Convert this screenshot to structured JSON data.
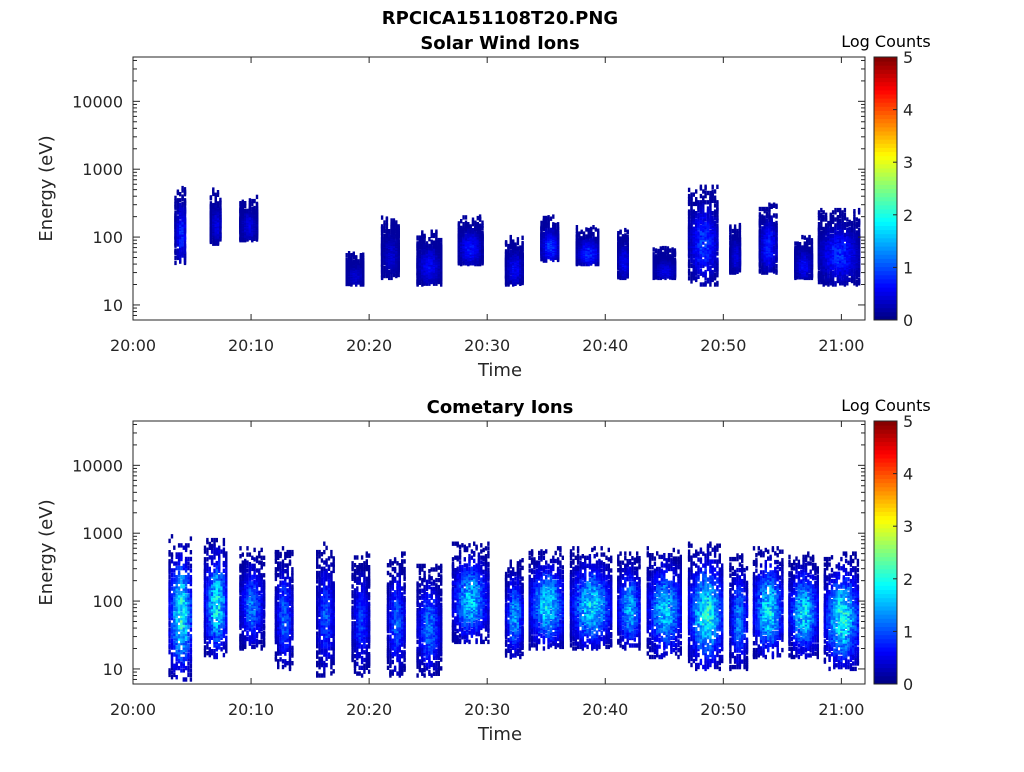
{
  "figure_title": "RPCICA151108T20.PNG",
  "chart_data": [
    {
      "type": "heatmap",
      "title": "Solar Wind Ions",
      "xlabel": "Time",
      "ylabel": "Energy (eV)",
      "y_scale": "log",
      "ylim": [
        6,
        45000
      ],
      "xlim": [
        "20:00",
        "21:02"
      ],
      "x_ticks": [
        "20:00",
        "20:10",
        "20:20",
        "20:30",
        "20:40",
        "20:50",
        "21:00"
      ],
      "y_ticks": [
        "10",
        "100",
        "1000",
        "10000"
      ],
      "colorbar": {
        "label": "Log Counts",
        "ticks": [
          "0",
          "1",
          "2",
          "3",
          "4",
          "5"
        ],
        "range": [
          0,
          5
        ],
        "colormap": "jet"
      },
      "activity_bursts": [
        {
          "start": "20:03.5",
          "end": "20:04.5",
          "emin": 40,
          "emax": 550,
          "level": 0.8
        },
        {
          "start": "20:06.5",
          "end": "20:07.5",
          "emin": 80,
          "emax": 500,
          "level": 0.5
        },
        {
          "start": "20:09",
          "end": "20:10.5",
          "emin": 90,
          "emax": 400,
          "level": 0.5
        },
        {
          "start": "20:18",
          "end": "20:19.5",
          "emin": 20,
          "emax": 60,
          "level": 0.4
        },
        {
          "start": "20:21",
          "end": "20:22.5",
          "emin": 25,
          "emax": 200,
          "level": 0.4
        },
        {
          "start": "20:24",
          "end": "20:26",
          "emin": 20,
          "emax": 120,
          "level": 0.6
        },
        {
          "start": "20:27.5",
          "end": "20:29.5",
          "emin": 40,
          "emax": 200,
          "level": 0.7
        },
        {
          "start": "20:31.5",
          "end": "20:33",
          "emin": 20,
          "emax": 100,
          "level": 0.6
        },
        {
          "start": "20:34.5",
          "end": "20:36",
          "emin": 45,
          "emax": 200,
          "level": 0.9
        },
        {
          "start": "20:37.5",
          "end": "20:39.5",
          "emin": 40,
          "emax": 140,
          "level": 0.8
        },
        {
          "start": "20:41",
          "end": "20:42",
          "emin": 25,
          "emax": 130,
          "level": 0.6
        },
        {
          "start": "20:44",
          "end": "20:46",
          "emin": 25,
          "emax": 70,
          "level": 0.5
        },
        {
          "start": "20:47",
          "end": "20:49.5",
          "emin": 20,
          "emax": 550,
          "level": 0.9
        },
        {
          "start": "20:50.5",
          "end": "20:51.5",
          "emin": 30,
          "emax": 150,
          "level": 0.5
        },
        {
          "start": "20:53",
          "end": "20:54.5",
          "emin": 30,
          "emax": 300,
          "level": 0.8
        },
        {
          "start": "20:56",
          "end": "20:57.5",
          "emin": 25,
          "emax": 100,
          "level": 0.6
        },
        {
          "start": "20:58",
          "end": "21:01.5",
          "emin": 20,
          "emax": 250,
          "level": 0.8
        }
      ]
    },
    {
      "type": "heatmap",
      "title": "Cometary Ions",
      "xlabel": "Time",
      "ylabel": "Energy (eV)",
      "y_scale": "log",
      "ylim": [
        6,
        45000
      ],
      "xlim": [
        "20:00",
        "21:02"
      ],
      "x_ticks": [
        "20:00",
        "20:10",
        "20:20",
        "20:30",
        "20:40",
        "20:50",
        "21:00"
      ],
      "y_ticks": [
        "10",
        "100",
        "1000",
        "10000"
      ],
      "colorbar": {
        "label": "Log Counts",
        "ticks": [
          "0",
          "1",
          "2",
          "3",
          "4",
          "5"
        ],
        "range": [
          0,
          5
        ],
        "colormap": "jet"
      },
      "activity_bursts": [
        {
          "start": "20:03",
          "end": "20:05",
          "emin": 7,
          "emax": 900,
          "level": 1.9
        },
        {
          "start": "20:06",
          "end": "20:08",
          "emin": 15,
          "emax": 900,
          "level": 1.8
        },
        {
          "start": "20:09",
          "end": "20:11",
          "emin": 20,
          "emax": 600,
          "level": 1.2
        },
        {
          "start": "20:12",
          "end": "20:13.5",
          "emin": 10,
          "emax": 600,
          "level": 1.1
        },
        {
          "start": "20:15.5",
          "end": "20:17",
          "emin": 8,
          "emax": 700,
          "level": 1.0
        },
        {
          "start": "20:18.5",
          "end": "20:20",
          "emin": 8,
          "emax": 500,
          "level": 0.9
        },
        {
          "start": "20:21.5",
          "end": "20:23",
          "emin": 8,
          "emax": 500,
          "level": 1.1
        },
        {
          "start": "20:24",
          "end": "20:26",
          "emin": 8,
          "emax": 350,
          "level": 1.2
        },
        {
          "start": "20:27",
          "end": "20:30",
          "emin": 25,
          "emax": 700,
          "level": 1.6
        },
        {
          "start": "20:31.5",
          "end": "20:33",
          "emin": 15,
          "emax": 400,
          "level": 1.4
        },
        {
          "start": "20:33.5",
          "end": "20:36.5",
          "emin": 20,
          "emax": 600,
          "level": 1.7
        },
        {
          "start": "20:37",
          "end": "20:40.5",
          "emin": 20,
          "emax": 600,
          "level": 1.7
        },
        {
          "start": "20:41",
          "end": "20:43",
          "emin": 20,
          "emax": 500,
          "level": 1.5
        },
        {
          "start": "20:43.5",
          "end": "20:46.5",
          "emin": 15,
          "emax": 600,
          "level": 1.6
        },
        {
          "start": "20:47",
          "end": "20:50",
          "emin": 10,
          "emax": 700,
          "level": 1.9
        },
        {
          "start": "20:50.5",
          "end": "20:52",
          "emin": 10,
          "emax": 500,
          "level": 1.3
        },
        {
          "start": "20:52.5",
          "end": "20:55",
          "emin": 15,
          "emax": 600,
          "level": 1.8
        },
        {
          "start": "20:55.5",
          "end": "20:58",
          "emin": 15,
          "emax": 500,
          "level": 1.7
        },
        {
          "start": "20:58.5",
          "end": "21:01.5",
          "emin": 10,
          "emax": 500,
          "level": 1.9
        }
      ]
    }
  ]
}
